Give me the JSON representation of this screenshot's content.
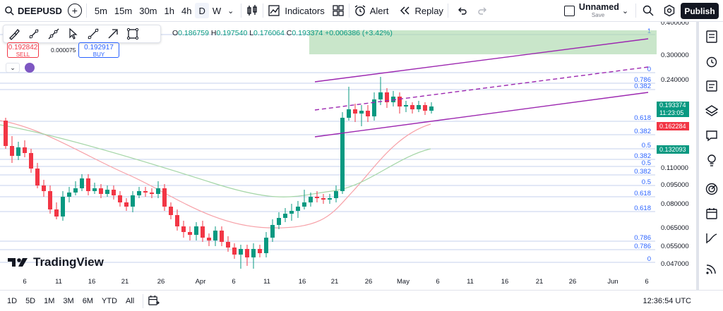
{
  "toolbar": {
    "symbol": "DEEPUSD",
    "intervals": [
      "5m",
      "15m",
      "30m",
      "1h",
      "4h",
      "D",
      "W"
    ],
    "active_interval": "D",
    "indicators_label": "Indicators",
    "alert_label": "Alert",
    "replay_label": "Replay",
    "layout_name": "Unnamed",
    "layout_status": "Save",
    "publish_label": "Publish"
  },
  "legend": {
    "open": "0.186759",
    "high": "0.197540",
    "low": "0.176064",
    "close": "0.193374",
    "change": "+0.006386 (+3.42%)",
    "open_prefix": "O",
    "high_prefix": "H",
    "low_prefix": "L",
    "close_prefix": "C"
  },
  "trade": {
    "sell_price": "0.192842",
    "sell_label": "SELL",
    "spread": "0.000075",
    "buy_price": "0.192917",
    "buy_label": "BUY"
  },
  "price_axis": [
    "0.400000",
    "0.300000",
    "0.240000",
    "0.110000",
    "0.095000",
    "0.080000",
    "0.065000",
    "0.055000",
    "0.047000"
  ],
  "price_labels": {
    "last_price": "0.193374",
    "countdown": "11:23:05",
    "ma_fast": "0.162284",
    "ma_slow": "0.132093"
  },
  "fib_labels": [
    "1",
    "0",
    "0.786",
    "0.382",
    "0.618",
    "0.382",
    "0.5",
    "0.382",
    "0.5",
    "0.382",
    "0.5",
    "0.618",
    "0.618",
    "0.786",
    "0.786",
    "0"
  ],
  "time_axis": [
    "6",
    "11",
    "16",
    "21",
    "26",
    "Apr",
    "6",
    "11",
    "16",
    "21",
    "26",
    "May",
    "6",
    "11",
    "16",
    "21",
    "26",
    "Jun",
    "6"
  ],
  "bottom": {
    "ranges": [
      "1D",
      "5D",
      "1M",
      "3M",
      "6M",
      "YTD",
      "All"
    ],
    "clock": "12:36:54 UTC"
  },
  "brand": "TradingView",
  "colors": {
    "up": "#089981",
    "down": "#f23645",
    "channel": "#9c27b0",
    "ma_fast": "#f7a1a8",
    "ma_slow": "#a5d6a7",
    "fib_zone": "#a5d6a7",
    "accent": "#2962ff"
  }
}
